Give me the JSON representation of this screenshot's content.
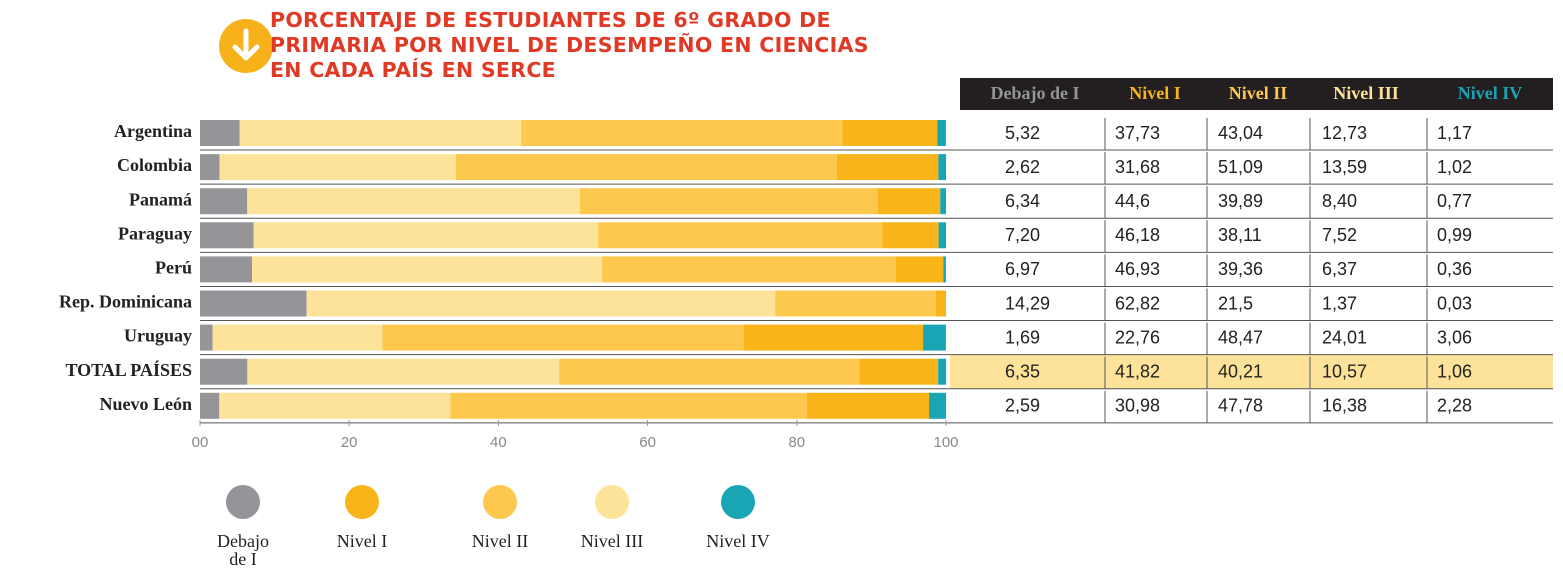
{
  "chart_data": {
    "type": "stacked-bar-table",
    "title": "PORCENTAJE DE ESTUDIANTES DE 6º GRADO DE PRIMARIA POR NIVEL DE DESEMPEÑO EN CIENCIAS EN CADA PAÍS EN SERCE",
    "categories": [
      "Argentina",
      "Colombia",
      "Panamá",
      "Paraguay",
      "Perú",
      "Rep. Dominicana",
      "Uruguay",
      "TOTAL PAÍSES",
      "Nuevo León"
    ],
    "series": [
      {
        "name": "Debajo de I",
        "color": "#939598",
        "legend_color": "#939598",
        "values": [
          5.32,
          2.62,
          6.34,
          7.2,
          6.97,
          14.29,
          1.69,
          6.35,
          2.59
        ],
        "value_labels": [
          "5,32",
          "2,62",
          "6,34",
          "7,20",
          "6,97",
          "14,29",
          "1,69",
          "6,35",
          "2,59"
        ]
      },
      {
        "name": "Nivel I",
        "color": "#fde39a",
        "legend_color": "#f8b418",
        "values": [
          37.73,
          31.68,
          44.6,
          46.18,
          46.93,
          62.82,
          22.76,
          41.82,
          30.98
        ],
        "value_labels": [
          "37,73",
          "31,68",
          "44,6",
          "46,18",
          "46,93",
          "62,82",
          "22,76",
          "41,82",
          "30,98"
        ]
      },
      {
        "name": "Nivel II",
        "color": "#fdc84d",
        "legend_color": "#fdc84d",
        "values": [
          43.04,
          51.09,
          39.89,
          38.11,
          39.36,
          21.5,
          48.47,
          40.21,
          47.78
        ],
        "value_labels": [
          "43,04",
          "51,09",
          "39,89",
          "38,11",
          "39,36",
          "21,5",
          "48,47",
          "40,21",
          "47,78"
        ]
      },
      {
        "name": "Nivel III",
        "color": "#f8b418",
        "legend_color": "#fde39a",
        "values": [
          12.73,
          13.59,
          8.4,
          7.52,
          6.37,
          1.37,
          24.01,
          10.57,
          16.38
        ],
        "value_labels": [
          "12,73",
          "13,59",
          "8,40",
          "7,52",
          "6,37",
          "1,37",
          "24,01",
          "10,57",
          "16,38"
        ]
      },
      {
        "name": "Nivel IV",
        "color": "#1aa5b5",
        "legend_color": "#1aa5b5",
        "values": [
          1.17,
          1.02,
          0.77,
          0.99,
          0.36,
          0.03,
          3.06,
          1.06,
          2.28
        ],
        "value_labels": [
          "1,17",
          "1,02",
          "0,77",
          "0,99",
          "0,36",
          "0,03",
          "3,06",
          "1,06",
          "2,28"
        ]
      }
    ],
    "xlim": [
      0,
      100
    ],
    "xticks": [
      {
        "value": 0,
        "label": "00"
      },
      20,
      40,
      60,
      80,
      100
    ],
    "highlight_row": 7
  }
}
